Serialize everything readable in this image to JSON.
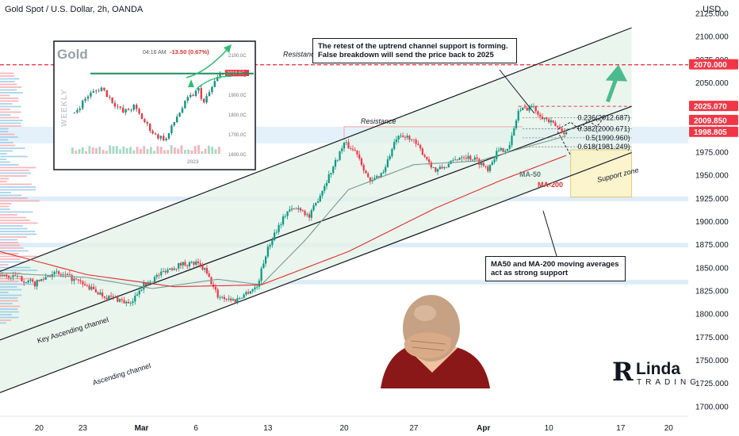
{
  "header": {
    "title": "Gold Spot / U.S. Dollar, 2h, OANDA",
    "currency": "USD"
  },
  "chart_data": {
    "type": "candlestick",
    "symbol": "Gold Spot / U.S. Dollar",
    "interval": "2h",
    "ylim": [
      1690,
      2140
    ],
    "y_ticks": [
      1700,
      1725,
      1750,
      1775,
      1800,
      1825,
      1850,
      1875,
      1900,
      1925,
      1950,
      1975,
      2000,
      2025,
      2050,
      2075,
      2100,
      2125
    ],
    "y_tick_labels": [
      "1700.000",
      "1725.000",
      "1750.000",
      "1775.000",
      "1800.000",
      "1825.000",
      "1850.000",
      "1875.000",
      "1900.000",
      "1925.000",
      "1950.000",
      "1975.000",
      "2000.000",
      "2025.000",
      "2050.000",
      "2075.000",
      "2100.000",
      "2125.000"
    ],
    "x_tick_labels": [
      "20",
      "23",
      "Mar",
      "6",
      "13",
      "20",
      "27",
      "Apr",
      "10",
      "17",
      "20"
    ],
    "x_tick_index": [
      18,
      38,
      65,
      90,
      123,
      158,
      190,
      222,
      252,
      285,
      307
    ],
    "x_index_range": [
      0,
      316
    ],
    "price_labels": [
      {
        "value": 2070.0,
        "label": "2070.000",
        "color": "#f23645"
      },
      {
        "value": 2025.07,
        "label": "2025.070",
        "color": "#f23645"
      },
      {
        "value": 2009.85,
        "label": "2009.850",
        "color": "#f23645"
      },
      {
        "value": 1998.805,
        "label": "1998.805",
        "color": "#f23645"
      }
    ],
    "ohlc_anchors": [
      {
        "i": 0,
        "p": 1842
      },
      {
        "i": 8,
        "p": 1840
      },
      {
        "i": 16,
        "p": 1833
      },
      {
        "i": 24,
        "p": 1845
      },
      {
        "i": 32,
        "p": 1840
      },
      {
        "i": 40,
        "p": 1830
      },
      {
        "i": 48,
        "p": 1820
      },
      {
        "i": 55,
        "p": 1816
      },
      {
        "i": 60,
        "p": 1810
      },
      {
        "i": 64,
        "p": 1828
      },
      {
        "i": 70,
        "p": 1838
      },
      {
        "i": 76,
        "p": 1848
      },
      {
        "i": 84,
        "p": 1855
      },
      {
        "i": 90,
        "p": 1855
      },
      {
        "i": 94,
        "p": 1848
      },
      {
        "i": 100,
        "p": 1820
      },
      {
        "i": 108,
        "p": 1815
      },
      {
        "i": 114,
        "p": 1825
      },
      {
        "i": 118,
        "p": 1830
      },
      {
        "i": 122,
        "p": 1865
      },
      {
        "i": 126,
        "p": 1888
      },
      {
        "i": 132,
        "p": 1912
      },
      {
        "i": 138,
        "p": 1915
      },
      {
        "i": 142,
        "p": 1905
      },
      {
        "i": 146,
        "p": 1925
      },
      {
        "i": 152,
        "p": 1955
      },
      {
        "i": 158,
        "p": 1985
      },
      {
        "i": 164,
        "p": 1975
      },
      {
        "i": 170,
        "p": 1942
      },
      {
        "i": 176,
        "p": 1955
      },
      {
        "i": 182,
        "p": 1990
      },
      {
        "i": 188,
        "p": 1992
      },
      {
        "i": 194,
        "p": 1975
      },
      {
        "i": 200,
        "p": 1955
      },
      {
        "i": 206,
        "p": 1962
      },
      {
        "i": 212,
        "p": 1972
      },
      {
        "i": 218,
        "p": 1968
      },
      {
        "i": 224,
        "p": 1958
      },
      {
        "i": 228,
        "p": 1975
      },
      {
        "i": 234,
        "p": 1982
      },
      {
        "i": 238,
        "p": 2020
      },
      {
        "i": 244,
        "p": 2025
      },
      {
        "i": 250,
        "p": 2012
      },
      {
        "i": 256,
        "p": 2002
      },
      {
        "i": 260,
        "p": 1996
      }
    ],
    "ma50": [
      {
        "i": 0,
        "p": 1845
      },
      {
        "i": 40,
        "p": 1840
      },
      {
        "i": 70,
        "p": 1828
      },
      {
        "i": 100,
        "p": 1838
      },
      {
        "i": 120,
        "p": 1832
      },
      {
        "i": 140,
        "p": 1880
      },
      {
        "i": 160,
        "p": 1935
      },
      {
        "i": 190,
        "p": 1962
      },
      {
        "i": 220,
        "p": 1966
      },
      {
        "i": 240,
        "p": 1980
      },
      {
        "i": 260,
        "p": 1993
      }
    ],
    "ma200": [
      {
        "i": 0,
        "p": 1868
      },
      {
        "i": 40,
        "p": 1843
      },
      {
        "i": 80,
        "p": 1830
      },
      {
        "i": 120,
        "p": 1832
      },
      {
        "i": 160,
        "p": 1868
      },
      {
        "i": 200,
        "p": 1915
      },
      {
        "i": 230,
        "p": 1945
      },
      {
        "i": 260,
        "p": 1972
      }
    ],
    "fib_levels": [
      {
        "ratio": "0.236",
        "value": 2012.687,
        "label": "0.236(2012.687)"
      },
      {
        "ratio": "0.382",
        "value": 2000.671,
        "label": "0.382(2000.671)"
      },
      {
        "ratio": "0.5",
        "value": 1990.96,
        "label": "0.5(1990.960)"
      },
      {
        "ratio": "0.618",
        "value": 1981.249,
        "label": "0.618(1981.249)"
      }
    ],
    "channel_upper": [
      {
        "i": -5,
        "p": 1842
      },
      {
        "i": 290,
        "p": 2110
      }
    ],
    "channel_middle": [
      {
        "i": -5,
        "p": 1768
      },
      {
        "i": 290,
        "p": 2025
      }
    ],
    "channel_lower": [
      {
        "i": -5,
        "p": 1711
      },
      {
        "i": 290,
        "p": 1975
      }
    ],
    "resistance_level": 2070,
    "resistance_zone": [
      1985,
      2003
    ],
    "support_zone": [
      1927,
      1978
    ],
    "annotations": [
      {
        "text": "Resistance / liquidity zone"
      },
      {
        "text": "Resistance"
      },
      {
        "text": "Support zone"
      },
      {
        "text": "MA-50"
      },
      {
        "text": "MA-200"
      },
      {
        "text": "Key Ascending channel"
      },
      {
        "text": "Ascending channel"
      }
    ]
  },
  "notes": {
    "retest": "The retest of the uptrend channel support is forming. False breakdown will send the price back to 2025",
    "ma": "MA50 and MA-200 moving averages act as strong support"
  },
  "inset": {
    "title": "Gold",
    "time": "04:16 AM",
    "change": "-13.50 (0.67%)",
    "side_label": "WEEKLY",
    "year_label": "2023",
    "y_labels": [
      "2100.0C",
      "2000.0C",
      "1900.0C",
      "1800.0C",
      "1700.0C",
      "1600.0C"
    ],
    "current": "2018.5C"
  },
  "brand": {
    "initial": "R",
    "name": "Linda",
    "tagline": "TRADING"
  },
  "colors": {
    "up": "#089981",
    "down": "#f23645",
    "ma50": "#7a9a8e",
    "ma200": "#e0302c",
    "channel_fill": "#e3f2e8",
    "resistance_line": "#f23645",
    "zone_blue": "#cfe6f5"
  }
}
